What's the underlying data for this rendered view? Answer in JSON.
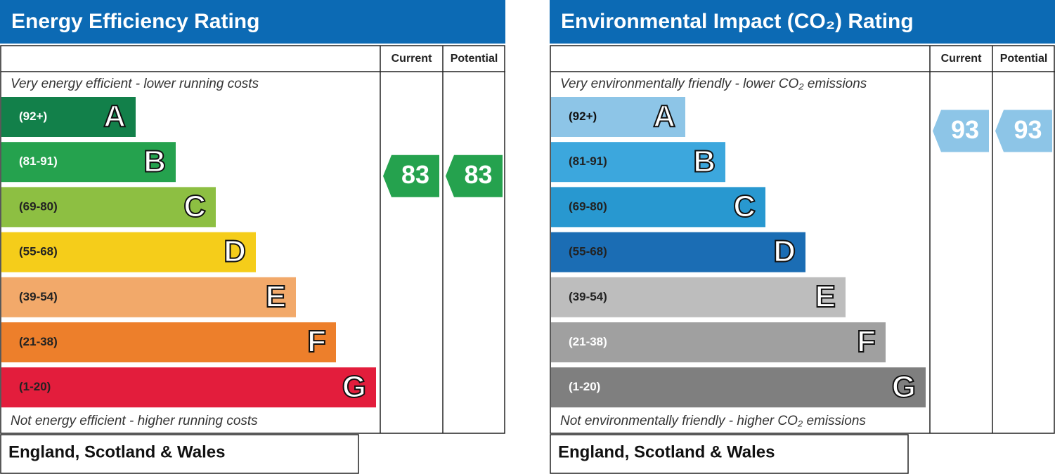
{
  "panels": [
    {
      "title": "Energy Efficiency Rating",
      "columns": [
        "Current",
        "Potential"
      ],
      "top_note": "Very energy efficient - lower running costs",
      "bottom_note": "Not energy efficient - higher running costs",
      "footer": "England, Scotland & Wales",
      "bands": [
        {
          "range": "(92+)",
          "letter": "A",
          "color": "#12804a",
          "label_color": "#ffffff"
        },
        {
          "range": "(81-91)",
          "letter": "B",
          "color": "#25a24e",
          "label_color": "#ffffff"
        },
        {
          "range": "(69-80)",
          "letter": "C",
          "color": "#8dbf42",
          "label_color": "#222222"
        },
        {
          "range": "(55-68)",
          "letter": "D",
          "color": "#f5cd1a",
          "label_color": "#222222"
        },
        {
          "range": "(39-54)",
          "letter": "E",
          "color": "#f2a96a",
          "label_color": "#222222"
        },
        {
          "range": "(21-38)",
          "letter": "F",
          "color": "#ed7f2b",
          "label_color": "#222222"
        },
        {
          "range": "(1-20)",
          "letter": "G",
          "color": "#e31d3c",
          "label_color": "#222222"
        }
      ],
      "current": 83,
      "potential": 83
    },
    {
      "title": "Environmental Impact (CO₂) Rating",
      "columns": [
        "Current",
        "Potential"
      ],
      "top_note": "Very environmentally friendly - lower CO₂ emissions",
      "bottom_note": "Not environmentally friendly - higher CO₂ emissions",
      "footer": "England, Scotland & Wales",
      "bands": [
        {
          "range": "(92+)",
          "letter": "A",
          "color": "#8dc5e7",
          "label_color": "#111111"
        },
        {
          "range": "(81-91)",
          "letter": "B",
          "color": "#3ca7dd",
          "label_color": "#222222"
        },
        {
          "range": "(69-80)",
          "letter": "C",
          "color": "#2898d0",
          "label_color": "#222222"
        },
        {
          "range": "(55-68)",
          "letter": "D",
          "color": "#1b6db4",
          "label_color": "#222222"
        },
        {
          "range": "(39-54)",
          "letter": "E",
          "color": "#bdbdbd",
          "label_color": "#222222"
        },
        {
          "range": "(21-38)",
          "letter": "F",
          "color": "#a0a0a0",
          "label_color": "#ffffff"
        },
        {
          "range": "(1-20)",
          "letter": "G",
          "color": "#7f7f7f",
          "label_color": "#ffffff"
        }
      ],
      "current": 93,
      "potential": 93
    }
  ]
}
